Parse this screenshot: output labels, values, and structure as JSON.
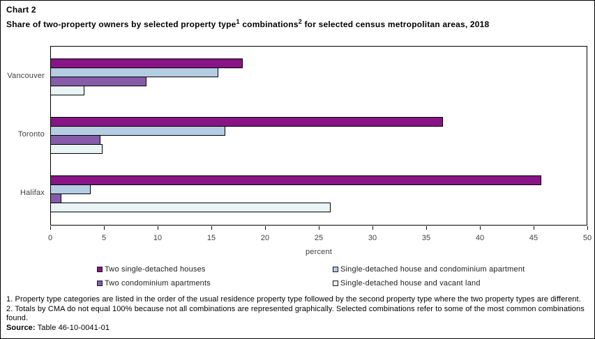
{
  "header": {
    "chart_label": "Chart 2",
    "subtitle_parts": {
      "part1": "Share of two-property owners by selected property type",
      "sup1": "1",
      "part2": "combinations",
      "sup2": "2",
      "part3": "for selected census metropolitan areas, 2018"
    }
  },
  "chart_data": {
    "type": "bar",
    "orientation": "horizontal",
    "title": "Chart 2",
    "subtitle": "Share of two-property owners by selected property type(1) combinations(2) for selected census metropolitan areas, 2018",
    "xlabel": "percent",
    "xlim": [
      0,
      50
    ],
    "xticks": [
      0,
      5,
      10,
      15,
      20,
      25,
      30,
      35,
      40,
      45,
      50
    ],
    "grid": false,
    "legend_position": "bottom",
    "frame_color": "#000000",
    "categories": [
      "Vancouver",
      "Toronto",
      "Halifax"
    ],
    "series": [
      {
        "name": "Two single-detached houses",
        "color": "#881485",
        "values": [
          17.9,
          36.6,
          45.8
        ]
      },
      {
        "name": "Single-detached house and condominium apartment",
        "color": "#B5CDE3",
        "values": [
          15.6,
          16.3,
          3.7
        ]
      },
      {
        "name": "Two condominium apartments",
        "color": "#865CA9",
        "values": [
          8.9,
          4.6,
          1.0
        ]
      },
      {
        "name": "Single-detached house and vacant land",
        "color": "#E9F4F7",
        "values": [
          3.1,
          4.8,
          26.1
        ]
      }
    ]
  },
  "legend_order": [
    0,
    1,
    2,
    3
  ],
  "footnotes": [
    "1. Property type categories are listed in the order of the usual residence property type followed by the second property type where the two property types are different.",
    "2. Totals by CMA do not equal 100% because not all combinations are represented graphically. Selected combinations refer to some of the most common combinations found."
  ],
  "source": {
    "label": "Source:",
    "value": "Table 46-10-0041-01"
  }
}
